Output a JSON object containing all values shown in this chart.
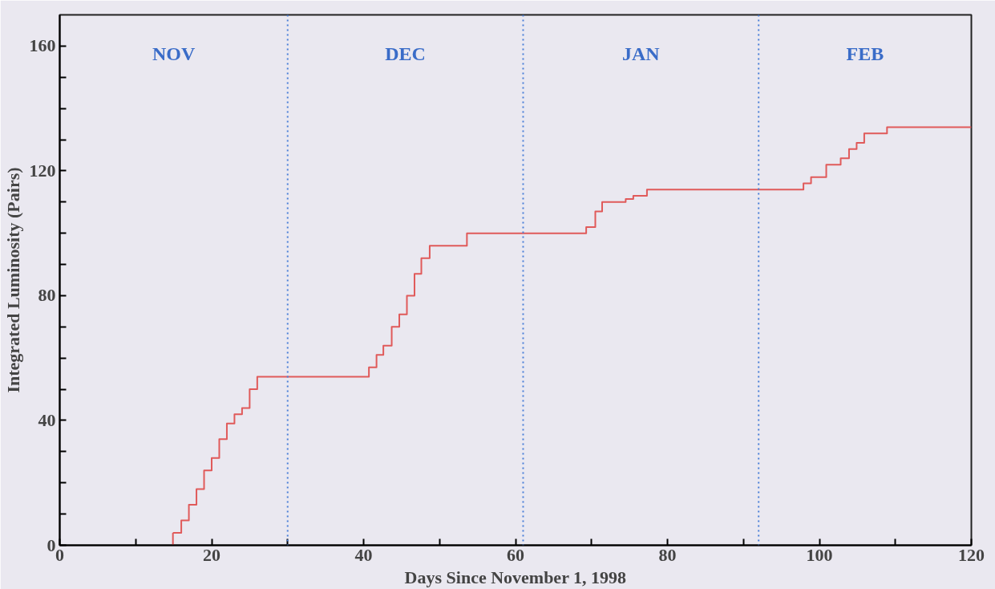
{
  "chart_data": {
    "type": "step",
    "xlabel": "Days Since November 1, 1998",
    "ylabel": "Integrated Luminosity (Pairs)",
    "x": [
      14.9,
      16,
      17,
      18,
      19,
      20,
      21,
      22,
      23,
      24,
      25,
      26,
      40.7,
      41.7,
      42.6,
      43.7,
      44.7,
      45.7,
      46.7,
      47.6,
      48.7,
      53.6,
      69.3,
      70.5,
      71.4,
      74.5,
      75.5,
      77.3,
      97.9,
      98.9,
      100.9,
      102.8,
      103.9,
      104.9,
      105.9,
      108.9,
      120
    ],
    "series": [
      {
        "color": "#e05a5a",
        "values": [
          4,
          8,
          13,
          18,
          24,
          28,
          34,
          39,
          42,
          44,
          50,
          54,
          57,
          61,
          64,
          70,
          74,
          80,
          87,
          92,
          96,
          100,
          102,
          107,
          110,
          111,
          112,
          114,
          116,
          118,
          122,
          124,
          127,
          129,
          132,
          134,
          134
        ]
      }
    ],
    "xlim": [
      0,
      120
    ],
    "ylim": [
      0,
      170
    ],
    "xticks": [
      0,
      {
        "value": 10,
        "label": null
      },
      20,
      {
        "value": 30,
        "label": null
      },
      40,
      {
        "value": 50,
        "label": null
      },
      60,
      {
        "value": 70,
        "label": null
      },
      80,
      {
        "value": 90,
        "label": null
      },
      100,
      {
        "value": 110,
        "label": null
      },
      120
    ],
    "yticks": [
      0,
      {
        "value": 10,
        "label": null
      },
      {
        "value": 20,
        "label": null
      },
      {
        "value": 30,
        "label": null
      },
      40,
      {
        "value": 50,
        "label": null
      },
      {
        "value": 60,
        "label": null
      },
      {
        "value": 70,
        "label": null
      },
      80,
      {
        "value": 90,
        "label": null
      },
      {
        "value": 100,
        "label": null
      },
      {
        "value": 110,
        "label": null
      },
      120,
      {
        "value": 130,
        "label": null
      },
      {
        "value": 140,
        "label": null
      },
      {
        "value": 150,
        "label": null
      },
      160
    ],
    "ref_lines": [
      {
        "axis": "x",
        "value": 30,
        "color": "#4a7fd8",
        "line_style": "dotted"
      },
      {
        "axis": "x",
        "value": 61,
        "color": "#4a7fd8",
        "line_style": "dotted"
      },
      {
        "axis": "x",
        "value": 92,
        "color": "#4a7fd8",
        "line_style": "dotted"
      }
    ],
    "annotations": [
      "NOV",
      "DEC",
      "JAN",
      "FEB"
    ],
    "line_style": "solid"
  }
}
